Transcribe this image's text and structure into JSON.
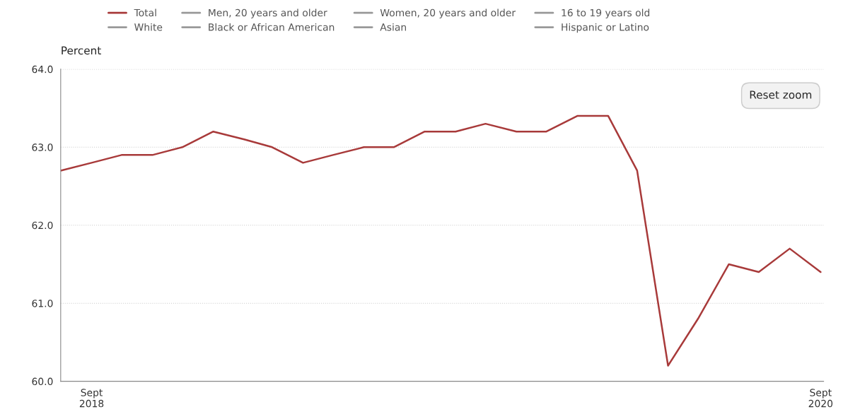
{
  "chart_data": {
    "type": "line",
    "ylabel": "Percent",
    "x": [
      "2018-08",
      "2018-09",
      "2018-10",
      "2018-11",
      "2018-12",
      "2019-01",
      "2019-02",
      "2019-03",
      "2019-04",
      "2019-05",
      "2019-06",
      "2019-07",
      "2019-08",
      "2019-09",
      "2019-10",
      "2019-11",
      "2019-12",
      "2020-01",
      "2020-02",
      "2020-03",
      "2020-04",
      "2020-05",
      "2020-06",
      "2020-07",
      "2020-08",
      "2020-09"
    ],
    "series": [
      {
        "name": "Total",
        "color": "#a83a3a",
        "values": [
          62.7,
          62.8,
          62.9,
          62.9,
          63.0,
          63.2,
          63.1,
          63.0,
          62.8,
          62.9,
          63.0,
          63.0,
          63.2,
          63.2,
          63.3,
          63.2,
          63.2,
          63.4,
          63.4,
          62.7,
          60.2,
          60.8,
          61.5,
          61.4,
          61.7,
          61.4
        ]
      },
      {
        "name": "Men, 20 years and older",
        "color": "#999999",
        "values": [
          null,
          null,
          null,
          null,
          null,
          null,
          null,
          null,
          null,
          null,
          null,
          null,
          null,
          null,
          null,
          null,
          null,
          null,
          null,
          null,
          null,
          null,
          null,
          null,
          null,
          null
        ]
      },
      {
        "name": "Women, 20 years and older",
        "color": "#999999",
        "values": [
          null,
          null,
          null,
          null,
          null,
          null,
          null,
          null,
          null,
          null,
          null,
          null,
          null,
          null,
          null,
          null,
          null,
          null,
          null,
          null,
          null,
          null,
          null,
          null,
          null,
          null
        ]
      },
      {
        "name": "16 to 19 years old",
        "color": "#999999",
        "values": [
          null,
          null,
          null,
          null,
          null,
          null,
          null,
          null,
          null,
          null,
          null,
          null,
          null,
          null,
          null,
          null,
          null,
          null,
          null,
          null,
          null,
          null,
          null,
          null,
          null,
          null
        ]
      },
      {
        "name": "White",
        "color": "#999999",
        "values": [
          null,
          null,
          null,
          null,
          null,
          null,
          null,
          null,
          null,
          null,
          null,
          null,
          null,
          null,
          null,
          null,
          null,
          null,
          null,
          null,
          null,
          null,
          null,
          null,
          null,
          null
        ]
      },
      {
        "name": "Black or African American",
        "color": "#999999",
        "values": [
          null,
          null,
          null,
          null,
          null,
          null,
          null,
          null,
          null,
          null,
          null,
          null,
          null,
          null,
          null,
          null,
          null,
          null,
          null,
          null,
          null,
          null,
          null,
          null,
          null,
          null
        ]
      },
      {
        "name": "Asian",
        "color": "#999999",
        "values": [
          null,
          null,
          null,
          null,
          null,
          null,
          null,
          null,
          null,
          null,
          null,
          null,
          null,
          null,
          null,
          null,
          null,
          null,
          null,
          null,
          null,
          null,
          null,
          null,
          null,
          null
        ]
      },
      {
        "name": "Hispanic or Latino",
        "color": "#999999",
        "values": [
          null,
          null,
          null,
          null,
          null,
          null,
          null,
          null,
          null,
          null,
          null,
          null,
          null,
          null,
          null,
          null,
          null,
          null,
          null,
          null,
          null,
          null,
          null,
          null,
          null,
          null
        ]
      }
    ],
    "xlim": [
      "2018-08-01",
      "2020-09-04"
    ],
    "xticks": [
      {
        "value": "2018-09",
        "label": "Sept\n2018"
      },
      {
        "value": "2020-09",
        "label": "Sept\n2020"
      }
    ],
    "ylim": [
      60.0,
      64.0
    ],
    "yticks": [
      {
        "value": 60,
        "label": "60.0"
      },
      {
        "value": 61,
        "label": "61.0"
      },
      {
        "value": 62,
        "label": "62.0"
      },
      {
        "value": 63,
        "label": "63.0"
      },
      {
        "value": 64,
        "label": "64.0"
      }
    ],
    "grid": "y",
    "legend": "top",
    "marker": "none",
    "line_style": "solid",
    "annotations": [
      "Reset zoom"
    ]
  }
}
